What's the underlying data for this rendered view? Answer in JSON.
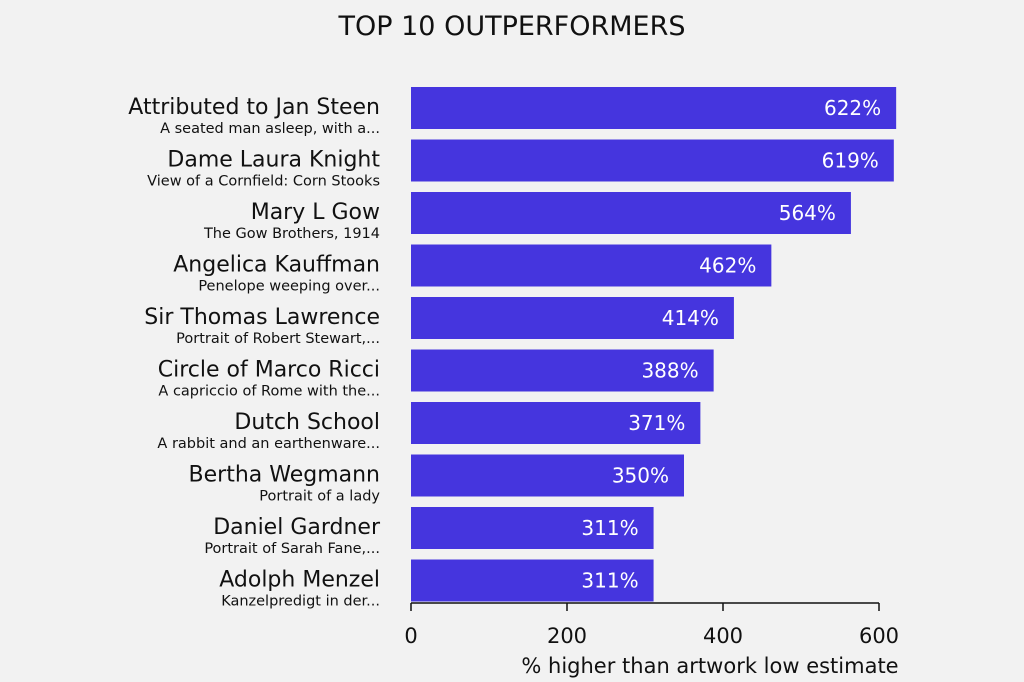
{
  "chart_data": {
    "type": "bar",
    "orientation": "horizontal",
    "title": "TOP 10 OUTPERFORMERS",
    "xlabel": "% higher than artwork low estimate",
    "ylabel": "",
    "xlim": [
      0,
      600
    ],
    "xticks": [
      "0",
      "200",
      "400",
      "600"
    ],
    "grid": false,
    "bar_color": "#4535de",
    "categories": [
      {
        "artist": "Attributed to Jan Steen",
        "work": "A seated man asleep, with a..."
      },
      {
        "artist": "Dame Laura Knight",
        "work": "View of a Cornfield: Corn Stooks"
      },
      {
        "artist": "Mary L Gow",
        "work": "The Gow Brothers, 1914"
      },
      {
        "artist": "Angelica Kauffman",
        "work": "Penelope weeping over..."
      },
      {
        "artist": "Sir Thomas Lawrence",
        "work": "Portrait of Robert Stewart,..."
      },
      {
        "artist": "Circle of Marco Ricci",
        "work": "A capriccio of Rome with the..."
      },
      {
        "artist": "Dutch School",
        "work": "A rabbit and an earthenware..."
      },
      {
        "artist": "Bertha Wegmann",
        "work": "Portrait of a lady"
      },
      {
        "artist": "Daniel Gardner",
        "work": "Portrait of Sarah Fane,..."
      },
      {
        "artist": "Adolph Menzel",
        "work": "Kanzelpredigt in der..."
      }
    ],
    "values": [
      622,
      619,
      564,
      462,
      414,
      388,
      371,
      350,
      311,
      311
    ],
    "value_labels": [
      "622%",
      "619%",
      "564%",
      "462%",
      "414%",
      "388%",
      "371%",
      "350%",
      "311%",
      "311%"
    ]
  }
}
